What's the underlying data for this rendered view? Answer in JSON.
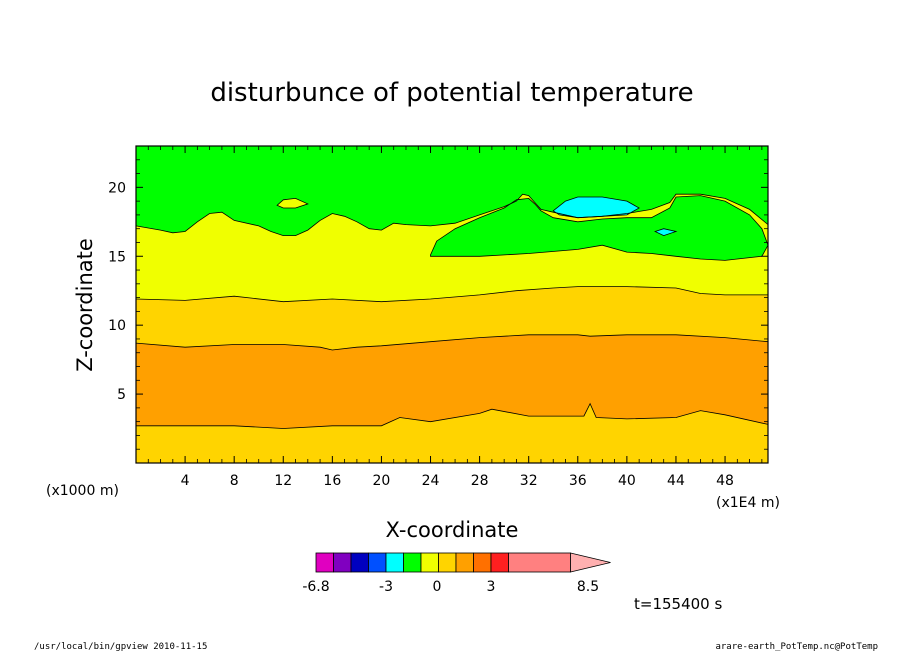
{
  "chart_data": {
    "type": "contour",
    "title": "disturbunce of potential temperature",
    "xlabel": "X-coordinate",
    "ylabel": "Z-coordinate",
    "x_unit_label": "(x1E4 m)",
    "y_unit_label": "(x1000 m)",
    "xlim": [
      0,
      51.5
    ],
    "ylim": [
      0,
      23
    ],
    "x_ticks": [
      4,
      8,
      12,
      16,
      20,
      24,
      28,
      32,
      36,
      40,
      44,
      48
    ],
    "y_ticks": [
      5,
      10,
      15,
      20
    ],
    "levels": [
      {
        "name": "band-lower-yellow",
        "value_range": "2 to 3",
        "color": "#ffd400"
      },
      {
        "name": "band-orange",
        "value_range": "3 to 4",
        "color": "#ffa000"
      },
      {
        "name": "band-upper-yellow",
        "value_range": "2 to 3",
        "color": "#ffd400"
      },
      {
        "name": "band-light-yellow",
        "value_range": "1 to 2",
        "color": "#f0ff00"
      },
      {
        "name": "band-green",
        "value_range": "0 to 1",
        "color": "#00ff00"
      },
      {
        "name": "band-cyan",
        "value_range": "-1 to 0",
        "color": "#00ffff"
      }
    ],
    "boundaries": {
      "orange_bottom": [
        [
          0,
          2.7
        ],
        [
          4,
          2.7
        ],
        [
          8,
          2.7
        ],
        [
          12,
          2.5
        ],
        [
          16,
          2.7
        ],
        [
          20,
          2.7
        ],
        [
          21.5,
          3.3
        ],
        [
          24,
          3.0
        ],
        [
          28,
          3.6
        ],
        [
          29,
          3.9
        ],
        [
          32,
          3.4
        ],
        [
          36.5,
          3.4
        ],
        [
          37,
          4.3
        ],
        [
          37.5,
          3.3
        ],
        [
          40,
          3.2
        ],
        [
          44,
          3.3
        ],
        [
          46,
          3.8
        ],
        [
          48,
          3.5
        ],
        [
          51.5,
          2.8
        ]
      ],
      "orange_top": [
        [
          0,
          8.7
        ],
        [
          4,
          8.4
        ],
        [
          8,
          8.6
        ],
        [
          12,
          8.6
        ],
        [
          15,
          8.4
        ],
        [
          16,
          8.2
        ],
        [
          18,
          8.4
        ],
        [
          20,
          8.5
        ],
        [
          24,
          8.8
        ],
        [
          28,
          9.1
        ],
        [
          32,
          9.3
        ],
        [
          36,
          9.3
        ],
        [
          37,
          9.2
        ],
        [
          40,
          9.3
        ],
        [
          44,
          9.3
        ],
        [
          48,
          9.1
        ],
        [
          51.5,
          8.8
        ]
      ],
      "yellow_top": [
        [
          0,
          11.9
        ],
        [
          4,
          11.8
        ],
        [
          8,
          12.1
        ],
        [
          12,
          11.7
        ],
        [
          16,
          11.9
        ],
        [
          20,
          11.7
        ],
        [
          24,
          11.9
        ],
        [
          28,
          12.2
        ],
        [
          31,
          12.5
        ],
        [
          34,
          12.7
        ],
        [
          36,
          12.8
        ],
        [
          40,
          12.8
        ],
        [
          44,
          12.7
        ],
        [
          46,
          12.3
        ],
        [
          48,
          12.2
        ],
        [
          51.5,
          12.2
        ]
      ],
      "light_yellow_top": [
        [
          0,
          17.2
        ],
        [
          2,
          16.9
        ],
        [
          3,
          16.7
        ],
        [
          4,
          16.8
        ],
        [
          5,
          17.5
        ],
        [
          6,
          18.1
        ],
        [
          7,
          18.2
        ],
        [
          8,
          17.6
        ],
        [
          10,
          17.2
        ],
        [
          11,
          16.8
        ],
        [
          12,
          16.5
        ],
        [
          13,
          16.5
        ],
        [
          14,
          16.9
        ],
        [
          15,
          17.6
        ],
        [
          16,
          18.1
        ],
        [
          17,
          17.9
        ],
        [
          18,
          17.5
        ],
        [
          19,
          17.0
        ],
        [
          20,
          16.9
        ],
        [
          21,
          17.4
        ],
        [
          22,
          17.3
        ],
        [
          24,
          17.2
        ],
        [
          26,
          17.4
        ],
        [
          28,
          18.0
        ],
        [
          30,
          18.6
        ],
        [
          31,
          19.0
        ],
        [
          31.5,
          19.5
        ],
        [
          32,
          19.4
        ],
        [
          32.5,
          18.9
        ],
        [
          33,
          18.4
        ],
        [
          34,
          18.2
        ],
        [
          36,
          17.8
        ],
        [
          38,
          17.9
        ],
        [
          40,
          18.1
        ],
        [
          42,
          18.4
        ],
        [
          43.5,
          18.9
        ],
        [
          44,
          19.5
        ],
        [
          46,
          19.5
        ],
        [
          48,
          19.2
        ],
        [
          50,
          18.4
        ],
        [
          51.5,
          17.3
        ]
      ],
      "green_region_low": [
        [
          24,
          15.1
        ],
        [
          24.5,
          16.1
        ],
        [
          26,
          17.0
        ],
        [
          28,
          17.8
        ],
        [
          30,
          18.5
        ],
        [
          31,
          19.1
        ],
        [
          32,
          19.2
        ],
        [
          32.5,
          18.8
        ],
        [
          33,
          18.3
        ],
        [
          34,
          17.8
        ],
        [
          36,
          17.5
        ],
        [
          38,
          17.7
        ],
        [
          40,
          17.8
        ],
        [
          42,
          17.8
        ],
        [
          43.5,
          18.5
        ],
        [
          44,
          19.3
        ],
        [
          46,
          19.4
        ],
        [
          48,
          19.0
        ],
        [
          50,
          18.0
        ],
        [
          51,
          17.0
        ],
        [
          51.5,
          15.8
        ],
        [
          51,
          15.0
        ],
        [
          48,
          14.7
        ],
        [
          46,
          14.8
        ],
        [
          44,
          15.0
        ],
        [
          42,
          15.2
        ],
        [
          40,
          15.3
        ],
        [
          38,
          15.8
        ],
        [
          36,
          15.5
        ],
        [
          32,
          15.2
        ],
        [
          28,
          15.0
        ],
        [
          24,
          15.0
        ]
      ],
      "cyan_blob": [
        [
          34,
          18.3
        ],
        [
          35,
          19.0
        ],
        [
          36,
          19.3
        ],
        [
          38,
          19.3
        ],
        [
          40,
          19.0
        ],
        [
          41,
          18.5
        ],
        [
          40,
          18.0
        ],
        [
          38,
          17.9
        ],
        [
          36,
          17.8
        ],
        [
          34.5,
          18.0
        ]
      ],
      "cyan_small": [
        [
          42.3,
          16.8
        ],
        [
          43,
          17.0
        ],
        [
          44,
          16.8
        ],
        [
          43,
          16.5
        ]
      ],
      "yellow_island_12": [
        [
          11.5,
          18.7
        ],
        [
          12,
          19.1
        ],
        [
          13,
          19.2
        ],
        [
          14,
          18.8
        ],
        [
          13,
          18.5
        ],
        [
          12,
          18.5
        ]
      ]
    },
    "colorbar": {
      "colors": [
        "#e000c0",
        "#8000c0",
        "#0000c0",
        "#0050ff",
        "#00ffff",
        "#00ff00",
        "#f0ff00",
        "#ffd400",
        "#ffa000",
        "#ff7000",
        "#ff2020",
        "#ff8080"
      ],
      "tick_labels": [
        "-6.8",
        "-3",
        "0",
        "3",
        "8.5"
      ],
      "extend": "max"
    },
    "annotation": "t=155400 s"
  },
  "footer": {
    "left": "/usr/local/bin/gpview   2010-11-15",
    "right": "arare-earth_PotTemp.nc@PotTemp"
  }
}
